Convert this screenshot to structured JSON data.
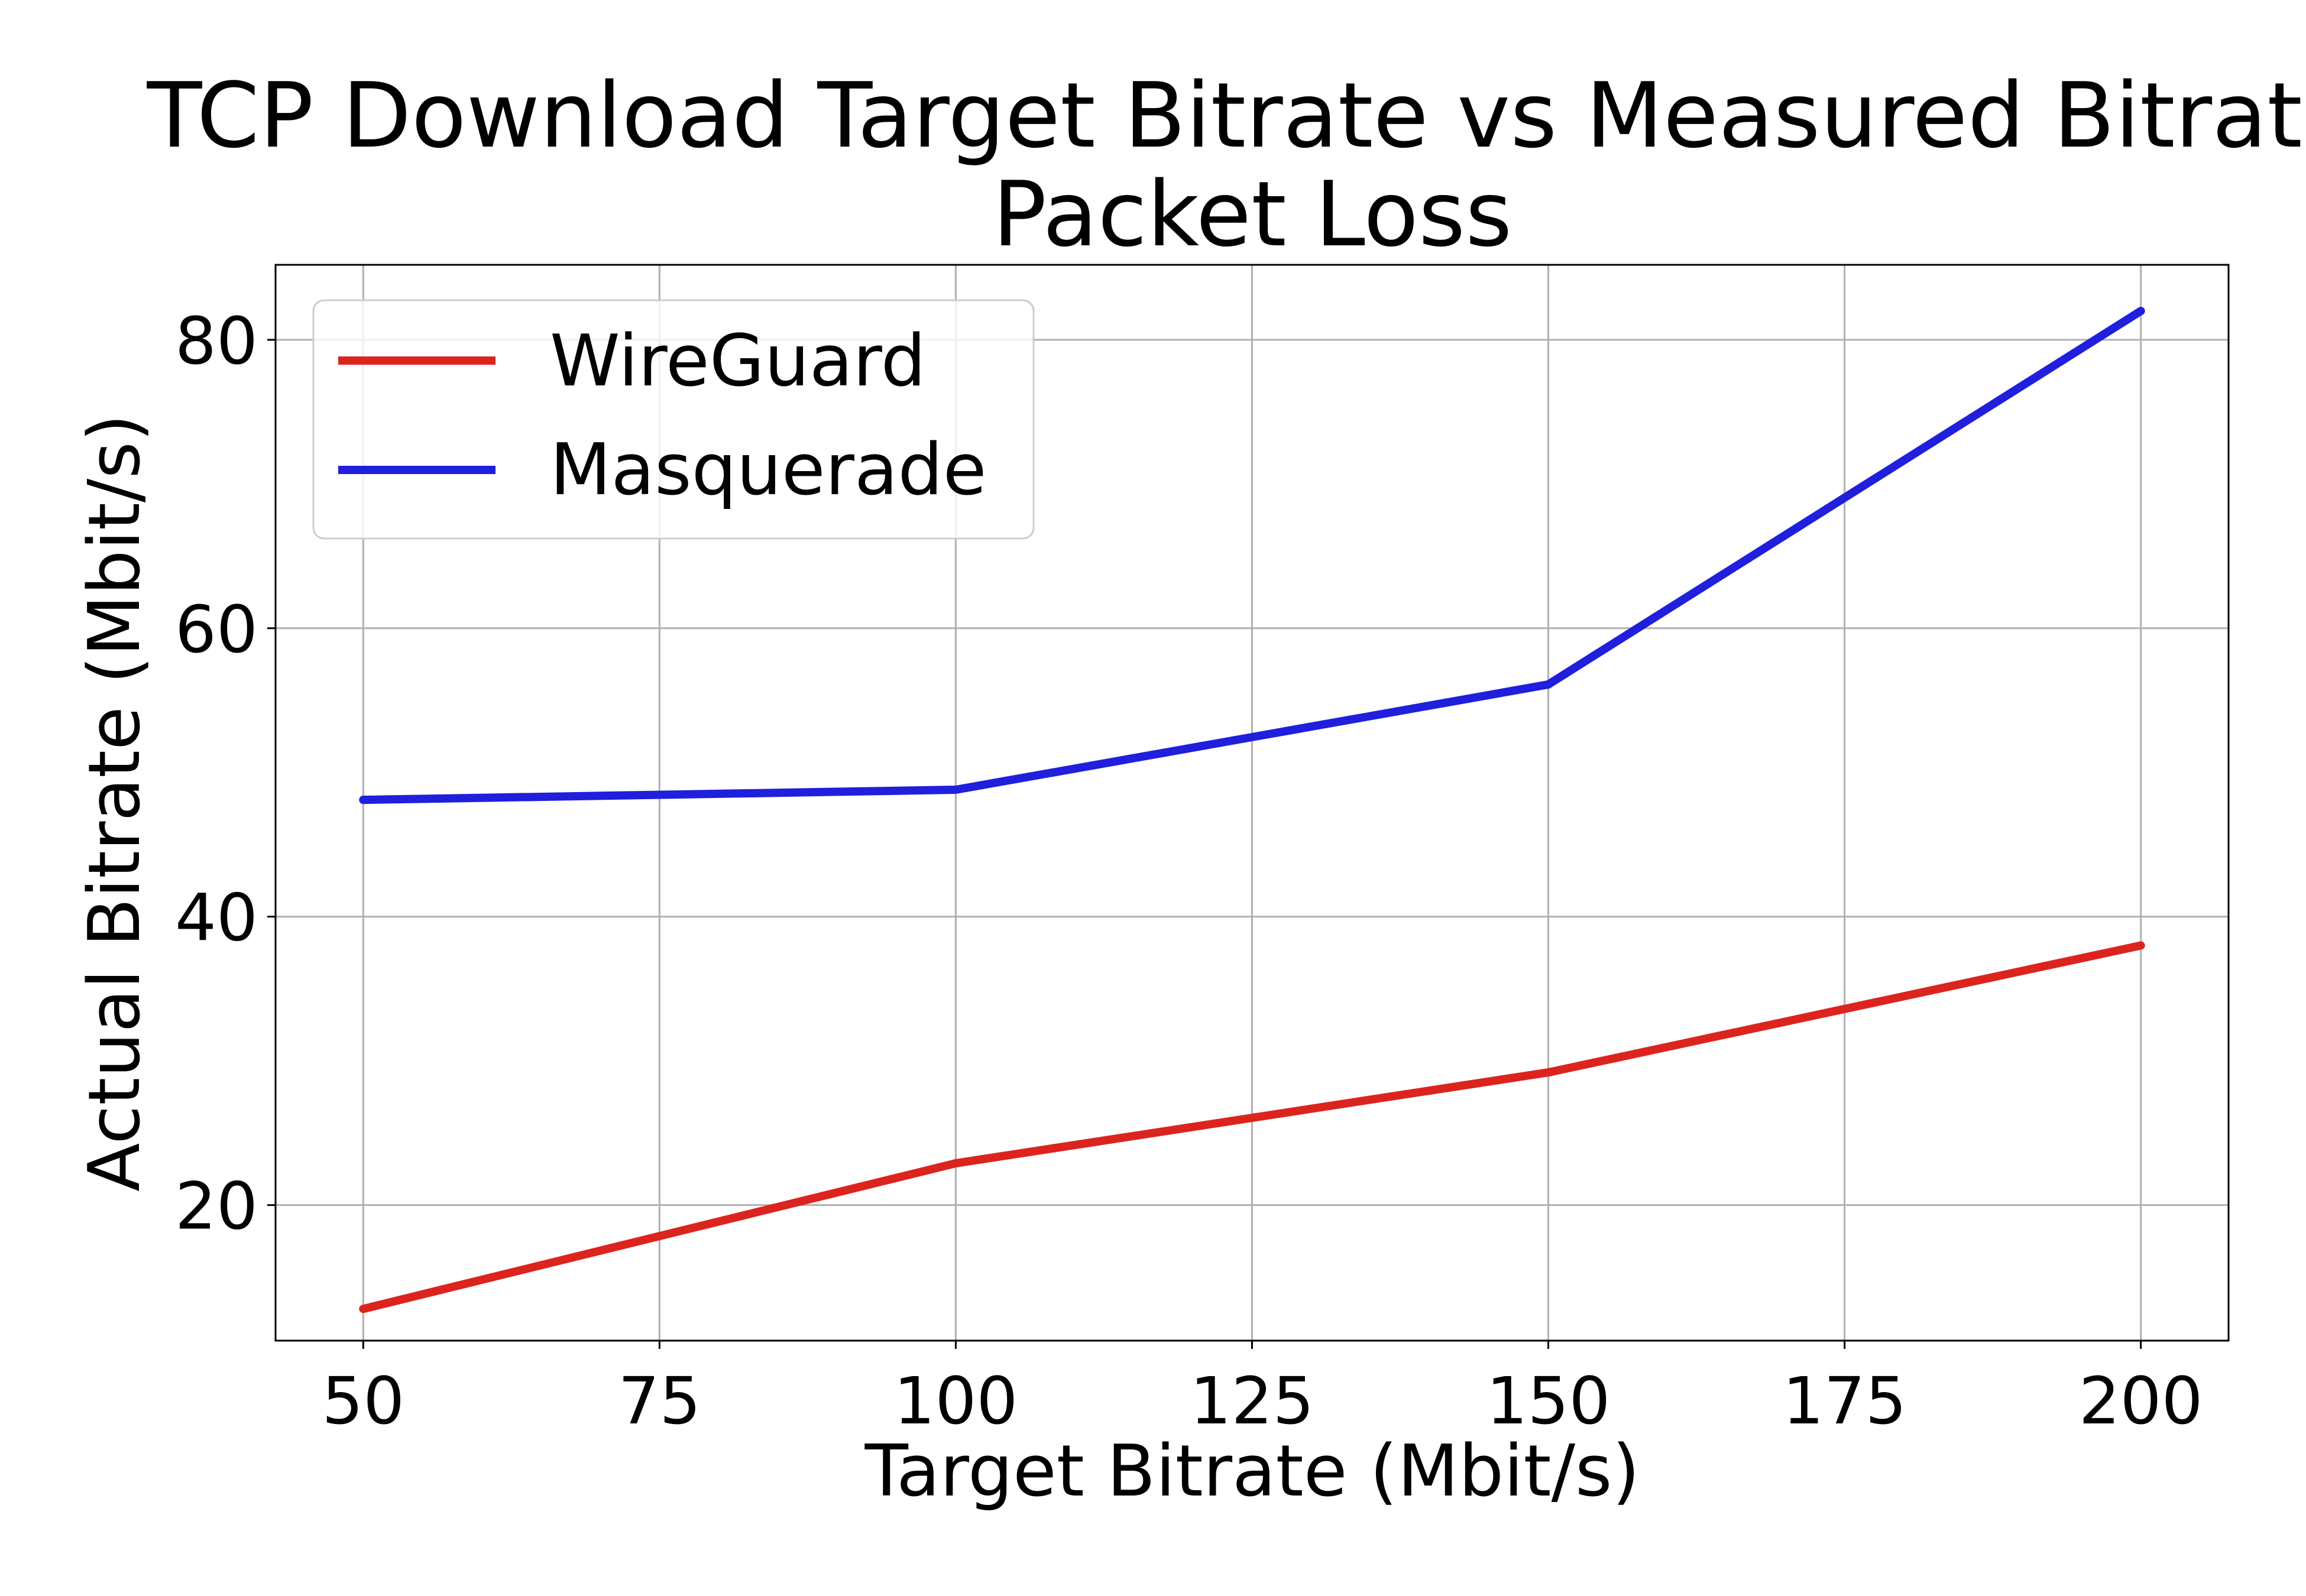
{
  "chart_data": {
    "type": "line",
    "title_line1": "TCP Download Target Bitrate vs Measured Bitrate",
    "title_line2": "Packet Loss",
    "xlabel": "Target Bitrate (Mbit/s)",
    "ylabel": "Actual Bitrate (Mbit/s)",
    "x": [
      50,
      100,
      150,
      200
    ],
    "xlim": [
      42.6,
      207.4
    ],
    "ylim": [
      10.6,
      85.2
    ],
    "xticks": [
      50,
      75,
      100,
      125,
      150,
      175,
      200
    ],
    "yticks": [
      20,
      40,
      60,
      80
    ],
    "xtick_labels": [
      "50",
      "75",
      "100",
      "125",
      "150",
      "175",
      "200"
    ],
    "ytick_labels": [
      "20",
      "40",
      "60",
      "80"
    ],
    "grid": true,
    "legend_position": "upper-left",
    "series": [
      {
        "name": "WireGuard",
        "color": "#dc241f",
        "values": [
          12.8,
          22.9,
          29.2,
          38.0
        ]
      },
      {
        "name": "Masquerade",
        "color": "#1f1fdc",
        "values": [
          48.1,
          48.8,
          56.1,
          82.0
        ]
      }
    ]
  }
}
